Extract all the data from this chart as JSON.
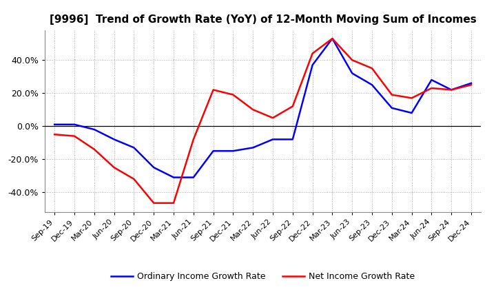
{
  "title": "[9996]  Trend of Growth Rate (YoY) of 12-Month Moving Sum of Incomes",
  "x_labels": [
    "Sep-19",
    "Dec-19",
    "Mar-20",
    "Jun-20",
    "Sep-20",
    "Dec-20",
    "Mar-21",
    "Jun-21",
    "Sep-21",
    "Dec-21",
    "Mar-22",
    "Jun-22",
    "Sep-22",
    "Dec-22",
    "Mar-23",
    "Jun-23",
    "Sep-23",
    "Dec-23",
    "Mar-24",
    "Jun-24",
    "Sep-24",
    "Dec-24"
  ],
  "ordinary_income": [
    1.0,
    1.0,
    -2.0,
    -8.0,
    -13.0,
    -25.0,
    -31.0,
    -31.0,
    -15.0,
    -15.0,
    -13.0,
    -8.0,
    -8.0,
    37.0,
    53.0,
    32.0,
    25.0,
    11.0,
    8.0,
    28.0,
    22.0,
    26.0
  ],
  "net_income": [
    -5.0,
    -6.0,
    -14.0,
    -25.0,
    -32.0,
    -46.5,
    -46.5,
    -8.0,
    22.0,
    19.0,
    10.0,
    5.0,
    12.0,
    44.0,
    53.0,
    40.0,
    35.0,
    19.0,
    17.0,
    23.0,
    22.0,
    25.0
  ],
  "ordinary_color": "#0000FF",
  "net_color": "#FF0000",
  "ylim": [
    -52,
    58
  ],
  "ytick_values": [
    -40.0,
    -20.0,
    0.0,
    20.0,
    40.0
  ],
  "background_color": "#FFFFFF",
  "plot_bg_color": "#FFFFFF",
  "grid_color": "#AAAAAA",
  "legend_ordinary": "Ordinary Income Growth Rate",
  "legend_net": "Net Income Growth Rate",
  "line_width": 1.8,
  "title_fontsize": 11,
  "tick_fontsize": 8,
  "legend_fontsize": 9
}
